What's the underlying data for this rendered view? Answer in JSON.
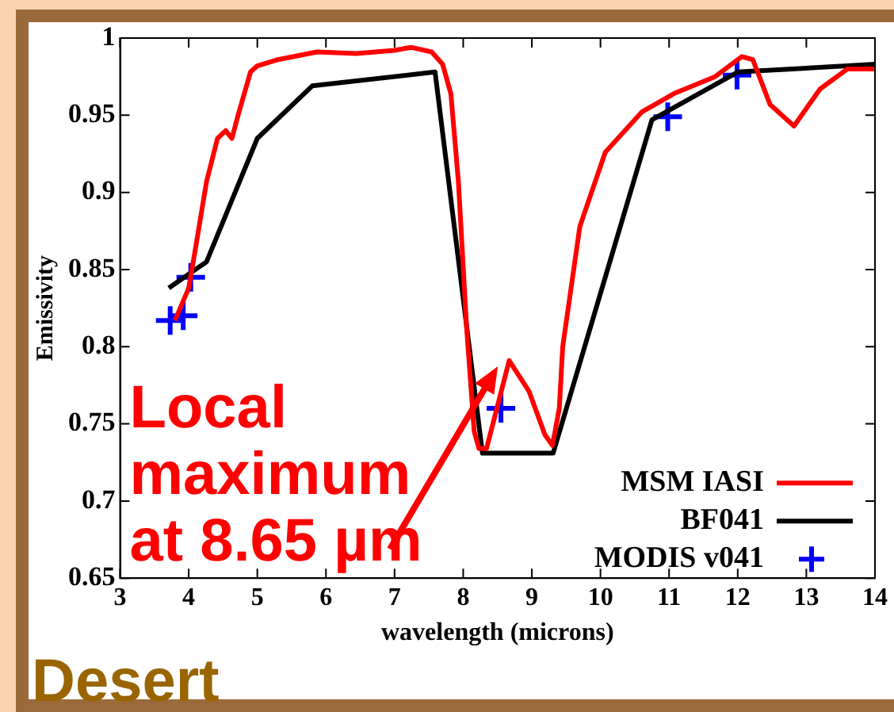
{
  "chart_data": {
    "type": "line",
    "xlabel": "wavelength (microns)",
    "ylabel": "Emissivity",
    "xlim": [
      3,
      14
    ],
    "xticks": [
      3,
      4,
      5,
      6,
      7,
      8,
      9,
      10,
      11,
      12,
      13,
      14
    ],
    "ylim": [
      0.65,
      1
    ],
    "yticks": [
      0.65,
      0.7,
      0.75,
      0.8,
      0.85,
      0.9,
      0.95,
      1
    ],
    "grid": false,
    "legend": "bottom right",
    "line_style": "solid",
    "annotations": [
      "Desert",
      {
        "text": "Local maximum at 8.65 µm",
        "x": 8.65,
        "y": 0.791
      }
    ],
    "series": [
      {
        "name": "MSM IASI",
        "color": "#ff0000",
        "x": [
          3.8,
          4.0,
          4.1,
          4.26,
          4.42,
          4.54,
          4.63,
          4.72,
          4.9,
          5.0,
          5.3,
          5.87,
          6.44,
          7.0,
          7.24,
          7.54,
          7.7,
          7.82,
          7.93,
          8.05,
          8.16,
          8.23,
          8.34,
          8.67,
          8.96,
          9.19,
          9.3,
          9.4,
          9.45,
          9.7,
          10.07,
          10.6,
          11.07,
          11.67,
          12.06,
          12.22,
          12.47,
          12.82,
          13.2,
          13.6,
          14.0
        ],
        "values": [
          0.817,
          0.838,
          0.864,
          0.907,
          0.935,
          0.94,
          0.935,
          0.95,
          0.978,
          0.982,
          0.986,
          0.991,
          0.99,
          0.992,
          0.994,
          0.991,
          0.983,
          0.964,
          0.907,
          0.812,
          0.745,
          0.734,
          0.734,
          0.791,
          0.771,
          0.743,
          0.736,
          0.76,
          0.8,
          0.878,
          0.926,
          0.952,
          0.964,
          0.975,
          0.988,
          0.986,
          0.957,
          0.943,
          0.967,
          0.98,
          0.98
        ]
      },
      {
        "name": "BF041",
        "color": "#000000",
        "x": [
          3.71,
          4.26,
          5.0,
          5.8,
          7.59,
          8.28,
          9.31,
          10.75,
          12.0,
          14.0
        ],
        "values": [
          0.838,
          0.855,
          0.935,
          0.969,
          0.978,
          0.731,
          0.731,
          0.947,
          0.978,
          0.983
        ]
      },
      {
        "name": "MODIS v041",
        "type": "scatter",
        "marker": "cross",
        "color": "#0000ff",
        "x": [
          3.73,
          3.92,
          4.03,
          8.55,
          10.98,
          11.99
        ],
        "values": [
          0.817,
          0.82,
          0.845,
          0.76,
          0.949,
          0.976
        ]
      }
    ]
  }
}
